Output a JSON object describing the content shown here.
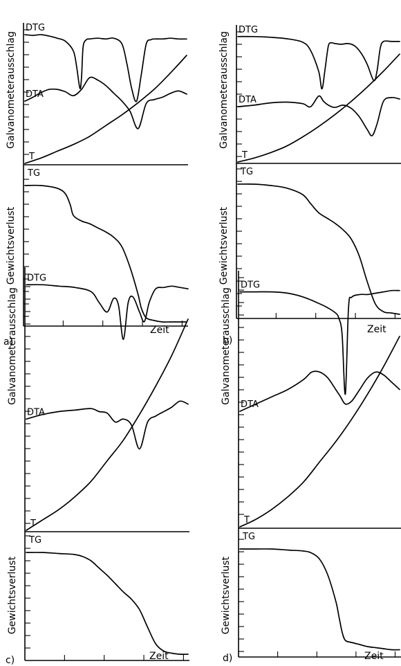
{
  "chart_data": [
    {
      "type": "line",
      "panel_label": "a)",
      "xlabel": "Zeit",
      "ylabel_upper": "Galvanometerausschlag",
      "ylabel_lower": "Gewichtsverlust",
      "series": [
        {
          "name": "DTG",
          "x": [
            0,
            0.05,
            0.1,
            0.15,
            0.2,
            0.25,
            0.3,
            0.32,
            0.34,
            0.35,
            0.36,
            0.38,
            0.4,
            0.45,
            0.5,
            0.55,
            0.6,
            0.63,
            0.66,
            0.69,
            0.72,
            0.75,
            0.78,
            0.8,
            0.85,
            0.9,
            0.95,
            1.0
          ],
          "y": [
            0.95,
            0.94,
            0.95,
            0.93,
            0.9,
            0.86,
            0.72,
            0.5,
            0.2,
            0.35,
            0.78,
            0.88,
            0.89,
            0.9,
            0.89,
            0.9,
            0.82,
            0.55,
            0.2,
            0.02,
            0.4,
            0.82,
            0.88,
            0.89,
            0.89,
            0.9,
            0.89,
            0.89
          ]
        },
        {
          "name": "DTA",
          "x": [
            0,
            0.05,
            0.1,
            0.15,
            0.2,
            0.25,
            0.3,
            0.35,
            0.4,
            0.45,
            0.5,
            0.55,
            0.6,
            0.65,
            0.7,
            0.75,
            0.8,
            0.85,
            0.9,
            0.95,
            1.0
          ],
          "y": [
            0.45,
            0.5,
            0.56,
            0.6,
            0.6,
            0.57,
            0.52,
            0.6,
            0.75,
            0.72,
            0.65,
            0.55,
            0.45,
            0.32,
            0.1,
            0.42,
            0.47,
            0.5,
            0.55,
            0.58,
            0.54
          ]
        },
        {
          "name": "T",
          "x": [
            0,
            0.1,
            0.2,
            0.3,
            0.4,
            0.5,
            0.6,
            0.7,
            0.8,
            0.9,
            1.0
          ],
          "y": [
            0.0,
            0.04,
            0.09,
            0.14,
            0.2,
            0.28,
            0.36,
            0.45,
            0.55,
            0.67,
            0.8
          ]
        },
        {
          "name": "TG",
          "x": [
            0,
            0.1,
            0.2,
            0.25,
            0.28,
            0.3,
            0.35,
            0.4,
            0.45,
            0.5,
            0.55,
            0.6,
            0.65,
            0.7,
            0.72,
            0.75,
            0.8,
            0.85,
            0.9,
            1.0
          ],
          "y": [
            0.0,
            0.0,
            0.02,
            0.06,
            0.14,
            0.22,
            0.26,
            0.28,
            0.31,
            0.34,
            0.38,
            0.45,
            0.6,
            0.8,
            0.9,
            0.97,
            0.99,
            1.0,
            1.0,
            1.0
          ]
        }
      ]
    },
    {
      "type": "line",
      "panel_label": "b)",
      "xlabel": "Zeit",
      "ylabel_upper": "Galvanometerausschlag",
      "ylabel_lower": "Gewichtsverlust",
      "series": [
        {
          "name": "DTG",
          "x": [
            0,
            0.1,
            0.2,
            0.3,
            0.4,
            0.45,
            0.5,
            0.52,
            0.54,
            0.56,
            0.58,
            0.6,
            0.64,
            0.68,
            0.72,
            0.76,
            0.8,
            0.84,
            0.86,
            0.88,
            0.9,
            0.95,
            1.0
          ],
          "y": [
            0.95,
            0.95,
            0.94,
            0.92,
            0.87,
            0.75,
            0.45,
            0.2,
            0.5,
            0.82,
            0.86,
            0.85,
            0.84,
            0.85,
            0.82,
            0.72,
            0.55,
            0.32,
            0.45,
            0.78,
            0.88,
            0.88,
            0.88
          ]
        },
        {
          "name": "DTA",
          "x": [
            0,
            0.1,
            0.2,
            0.3,
            0.4,
            0.45,
            0.5,
            0.53,
            0.56,
            0.6,
            0.65,
            0.7,
            0.75,
            0.8,
            0.83,
            0.86,
            0.9,
            0.95,
            1.0
          ],
          "y": [
            0.38,
            0.4,
            0.43,
            0.44,
            0.42,
            0.38,
            0.52,
            0.45,
            0.4,
            0.37,
            0.4,
            0.36,
            0.25,
            0.08,
            0.0,
            0.15,
            0.45,
            0.5,
            0.48
          ]
        },
        {
          "name": "T",
          "x": [
            0,
            0.1,
            0.2,
            0.3,
            0.4,
            0.5,
            0.6,
            0.7,
            0.8,
            0.9,
            1.0
          ],
          "y": [
            0.0,
            0.03,
            0.07,
            0.12,
            0.19,
            0.27,
            0.36,
            0.46,
            0.57,
            0.69,
            0.82
          ]
        },
        {
          "name": "TG",
          "x": [
            0,
            0.1,
            0.2,
            0.3,
            0.4,
            0.45,
            0.5,
            0.55,
            0.6,
            0.65,
            0.7,
            0.75,
            0.8,
            0.85,
            0.9,
            0.95,
            1.0
          ],
          "y": [
            0.0,
            0.0,
            0.01,
            0.03,
            0.08,
            0.15,
            0.22,
            0.26,
            0.3,
            0.35,
            0.42,
            0.55,
            0.75,
            0.92,
            0.98,
            0.99,
            1.0
          ]
        }
      ]
    },
    {
      "type": "line",
      "panel_label": "c)",
      "xlabel": "Zeit",
      "ylabel_upper": "Galvanometerausschlag",
      "ylabel_lower": "Gewichtsverlust",
      "series": [
        {
          "name": "DTG",
          "x": [
            0,
            0.1,
            0.2,
            0.3,
            0.4,
            0.45,
            0.5,
            0.54,
            0.57,
            0.6,
            0.63,
            0.66,
            0.7,
            0.73,
            0.76,
            0.8,
            0.85,
            0.9,
            0.95,
            1.0
          ],
          "y": [
            0.95,
            0.95,
            0.94,
            0.93,
            0.9,
            0.82,
            0.75,
            0.85,
            0.8,
            0.55,
            0.82,
            0.86,
            0.75,
            0.68,
            0.82,
            0.92,
            0.93,
            0.94,
            0.93,
            0.92
          ]
        },
        {
          "name": "DTA",
          "x": [
            0,
            0.1,
            0.2,
            0.3,
            0.4,
            0.45,
            0.5,
            0.55,
            0.6,
            0.65,
            0.7,
            0.75,
            0.8,
            0.85,
            0.9,
            0.95,
            1.0
          ],
          "y": [
            0.4,
            0.43,
            0.45,
            0.46,
            0.47,
            0.45,
            0.44,
            0.38,
            0.4,
            0.36,
            0.2,
            0.38,
            0.42,
            0.45,
            0.48,
            0.52,
            0.5
          ]
        },
        {
          "name": "T",
          "x": [
            0,
            0.1,
            0.2,
            0.3,
            0.4,
            0.5,
            0.6,
            0.7,
            0.8,
            0.9,
            1.0
          ],
          "y": [
            0.0,
            0.04,
            0.08,
            0.13,
            0.19,
            0.27,
            0.35,
            0.45,
            0.56,
            0.68,
            0.82
          ]
        },
        {
          "name": "TG",
          "x": [
            0,
            0.1,
            0.2,
            0.3,
            0.35,
            0.4,
            0.45,
            0.5,
            0.55,
            0.6,
            0.65,
            0.7,
            0.75,
            0.8,
            0.85,
            0.9,
            0.95,
            1.0
          ],
          "y": [
            0.0,
            0.0,
            0.01,
            0.02,
            0.04,
            0.08,
            0.15,
            0.22,
            0.3,
            0.38,
            0.45,
            0.55,
            0.72,
            0.88,
            0.95,
            0.97,
            0.98,
            0.98
          ]
        }
      ]
    },
    {
      "type": "line",
      "panel_label": "d)",
      "xlabel": "Zeit",
      "ylabel_upper": "Galvanometerausschlag",
      "ylabel_lower": "Gewichtsverlust",
      "series": [
        {
          "name": "DTG",
          "x": [
            0,
            0.1,
            0.2,
            0.3,
            0.4,
            0.5,
            0.55,
            0.6,
            0.62,
            0.64,
            0.66,
            0.68,
            0.7,
            0.75,
            0.8,
            0.85,
            0.9,
            0.95,
            1.0
          ],
          "y": [
            0.92,
            0.92,
            0.92,
            0.91,
            0.88,
            0.83,
            0.8,
            0.76,
            0.72,
            0.6,
            0.15,
            0.8,
            0.88,
            0.9,
            0.9,
            0.91,
            0.92,
            0.93,
            0.93
          ]
        },
        {
          "name": "DTA",
          "x": [
            0,
            0.1,
            0.2,
            0.3,
            0.4,
            0.45,
            0.5,
            0.55,
            0.6,
            0.63,
            0.66,
            0.7,
            0.75,
            0.8,
            0.85,
            0.9,
            0.95,
            1.0
          ],
          "y": [
            0.45,
            0.5,
            0.55,
            0.6,
            0.67,
            0.72,
            0.72,
            0.68,
            0.6,
            0.55,
            0.5,
            0.52,
            0.6,
            0.68,
            0.72,
            0.7,
            0.65,
            0.6
          ]
        },
        {
          "name": "T",
          "x": [
            0,
            0.1,
            0.2,
            0.3,
            0.4,
            0.5,
            0.6,
            0.7,
            0.8,
            0.9,
            1.0
          ],
          "y": [
            0.0,
            0.03,
            0.07,
            0.12,
            0.18,
            0.26,
            0.34,
            0.43,
            0.53,
            0.64,
            0.76
          ]
        },
        {
          "name": "TG",
          "x": [
            0,
            0.1,
            0.2,
            0.3,
            0.4,
            0.45,
            0.5,
            0.55,
            0.6,
            0.62,
            0.64,
            0.66,
            0.7,
            0.75,
            0.8,
            0.85,
            0.9,
            0.95,
            1.0
          ],
          "y": [
            0.0,
            0.0,
            0.0,
            0.01,
            0.02,
            0.04,
            0.1,
            0.25,
            0.5,
            0.65,
            0.8,
            0.88,
            0.9,
            0.92,
            0.94,
            0.95,
            0.96,
            0.97,
            0.97
          ]
        }
      ]
    }
  ]
}
